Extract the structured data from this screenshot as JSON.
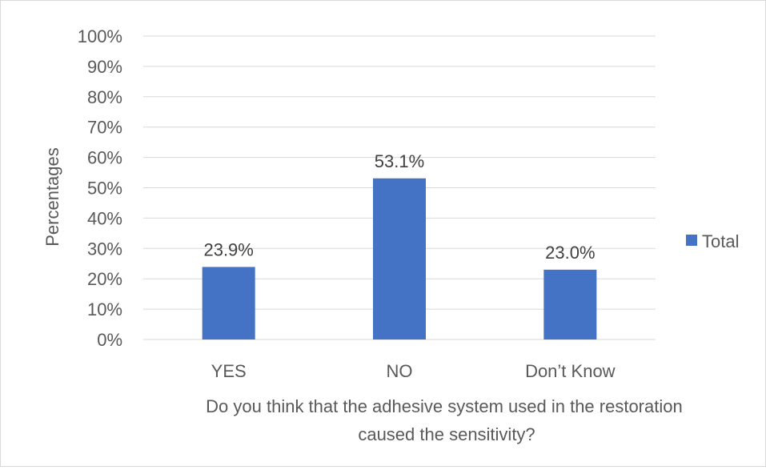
{
  "chart_data": {
    "type": "bar",
    "categories": [
      "YES",
      "NO",
      "Don’t Know"
    ],
    "series": [
      {
        "name": "Total",
        "values": [
          23.9,
          53.1,
          23.0
        ],
        "color": "#4472c4"
      }
    ],
    "data_labels": [
      "23.9%",
      "53.1%",
      "23.0%"
    ],
    "y_ticks": [
      "0%",
      "10%",
      "20%",
      "30%",
      "40%",
      "50%",
      "60%",
      "70%",
      "80%",
      "90%",
      "100%"
    ],
    "ylim": [
      0,
      100
    ],
    "ylabel": "Percentages",
    "xlabel_lines": [
      "Do you think that the adhesive system used in the restoration",
      "caused the sensitivity?"
    ],
    "grid": true,
    "legend_position": "right",
    "gridline_color": "#d9d9d9"
  }
}
